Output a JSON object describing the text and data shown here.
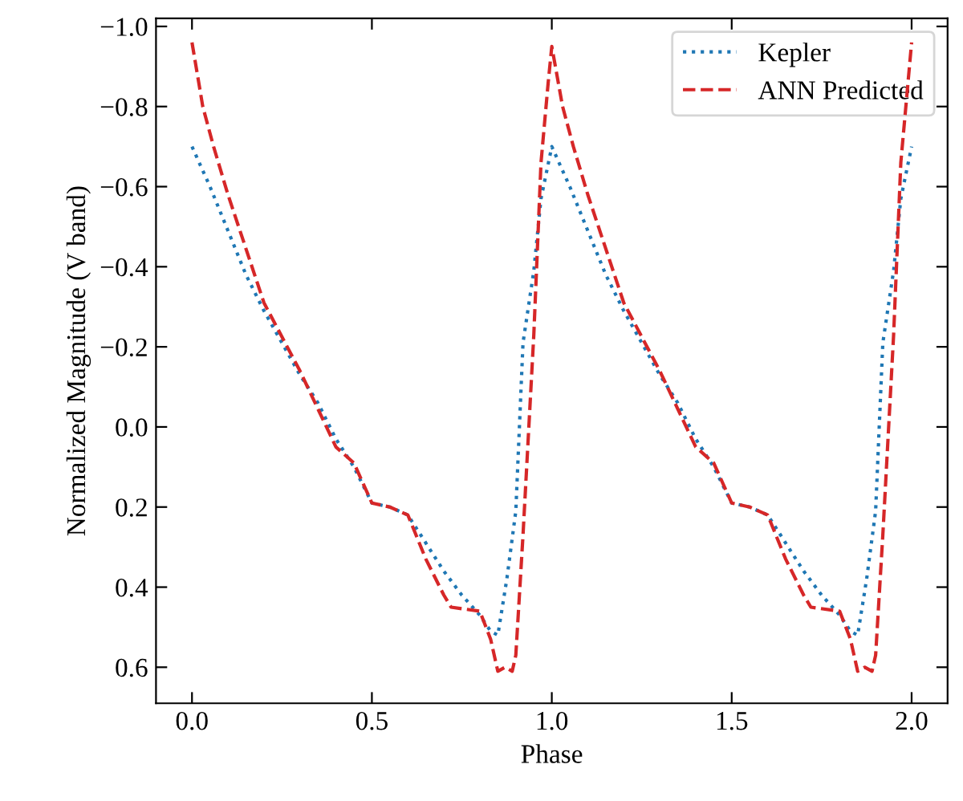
{
  "chart_data": {
    "type": "line",
    "xlabel": "Phase",
    "ylabel": "Normalized Magnitude (V band)",
    "series": [
      {
        "name": "Kepler",
        "color": "#1f77b4",
        "line_style": "dotted",
        "x": [
          0.0,
          0.05,
          0.1,
          0.15,
          0.2,
          0.25,
          0.3,
          0.35,
          0.4,
          0.45,
          0.5,
          0.55,
          0.6,
          0.65,
          0.7,
          0.75,
          0.8,
          0.83,
          0.85,
          0.875,
          0.9,
          0.92,
          0.95,
          0.97,
          1.0,
          1.05,
          1.1,
          1.15,
          1.2,
          1.25,
          1.3,
          1.35,
          1.4,
          1.45,
          1.5,
          1.55,
          1.6,
          1.65,
          1.7,
          1.75,
          1.8,
          1.83,
          1.85,
          1.875,
          1.9,
          1.92,
          1.95,
          1.97,
          2.0
        ],
        "values": [
          -0.7,
          -0.6,
          -0.49,
          -0.38,
          -0.29,
          -0.21,
          -0.13,
          -0.06,
          0.03,
          0.1,
          0.19,
          0.2,
          0.22,
          0.29,
          0.36,
          0.42,
          0.47,
          0.51,
          0.52,
          0.38,
          0.21,
          -0.21,
          -0.39,
          -0.57,
          -0.7,
          -0.6,
          -0.49,
          -0.38,
          -0.29,
          -0.21,
          -0.13,
          -0.06,
          0.03,
          0.1,
          0.19,
          0.2,
          0.22,
          0.29,
          0.36,
          0.42,
          0.47,
          0.51,
          0.52,
          0.38,
          0.21,
          -0.21,
          -0.39,
          -0.57,
          -0.7
        ]
      },
      {
        "name": "ANN Predicted",
        "color": "#d62728",
        "line_style": "dashed",
        "x": [
          0.0,
          0.03,
          0.06,
          0.1,
          0.2,
          0.3,
          0.4,
          0.45,
          0.5,
          0.55,
          0.6,
          0.65,
          0.7,
          0.72,
          0.8,
          0.83,
          0.85,
          0.87,
          0.89,
          0.9,
          0.92,
          0.95,
          0.97,
          0.99,
          1.0,
          1.03,
          1.06,
          1.1,
          1.2,
          1.3,
          1.4,
          1.45,
          1.5,
          1.55,
          1.6,
          1.65,
          1.7,
          1.72,
          1.8,
          1.83,
          1.85,
          1.87,
          1.89,
          1.9,
          1.92,
          1.95,
          1.97,
          1.99,
          2.0
        ],
        "values": [
          -0.96,
          -0.8,
          -0.7,
          -0.58,
          -0.31,
          -0.14,
          0.05,
          0.09,
          0.19,
          0.2,
          0.22,
          0.33,
          0.42,
          0.45,
          0.46,
          0.53,
          0.61,
          0.6,
          0.61,
          0.57,
          0.27,
          -0.23,
          -0.66,
          -0.86,
          -0.95,
          -0.8,
          -0.7,
          -0.58,
          -0.31,
          -0.14,
          0.05,
          0.09,
          0.19,
          0.2,
          0.22,
          0.33,
          0.42,
          0.45,
          0.46,
          0.53,
          0.61,
          0.6,
          0.61,
          0.57,
          0.27,
          -0.23,
          -0.66,
          -0.86,
          -0.96
        ]
      }
    ],
    "xlim": [
      -0.1,
      2.1
    ],
    "ylim": [
      0.69,
      -1.02
    ],
    "xticks": [
      {
        "value": 0.0,
        "label": "0.0"
      },
      0.5,
      {
        "value": 1.0,
        "label": "1.0"
      },
      1.5,
      {
        "value": 2.0,
        "label": "2.0"
      }
    ],
    "yticks": [
      {
        "value": -1.0,
        "label": "−1.0"
      },
      {
        "value": -0.8,
        "label": "−0.8"
      },
      {
        "value": -0.6,
        "label": "−0.6"
      },
      {
        "value": -0.4,
        "label": "−0.4"
      },
      {
        "value": -0.2,
        "label": "−0.2"
      },
      {
        "value": 0.0,
        "label": "0.0"
      },
      0.2,
      0.4,
      0.6
    ],
    "legend": "top right",
    "grid": false
  }
}
